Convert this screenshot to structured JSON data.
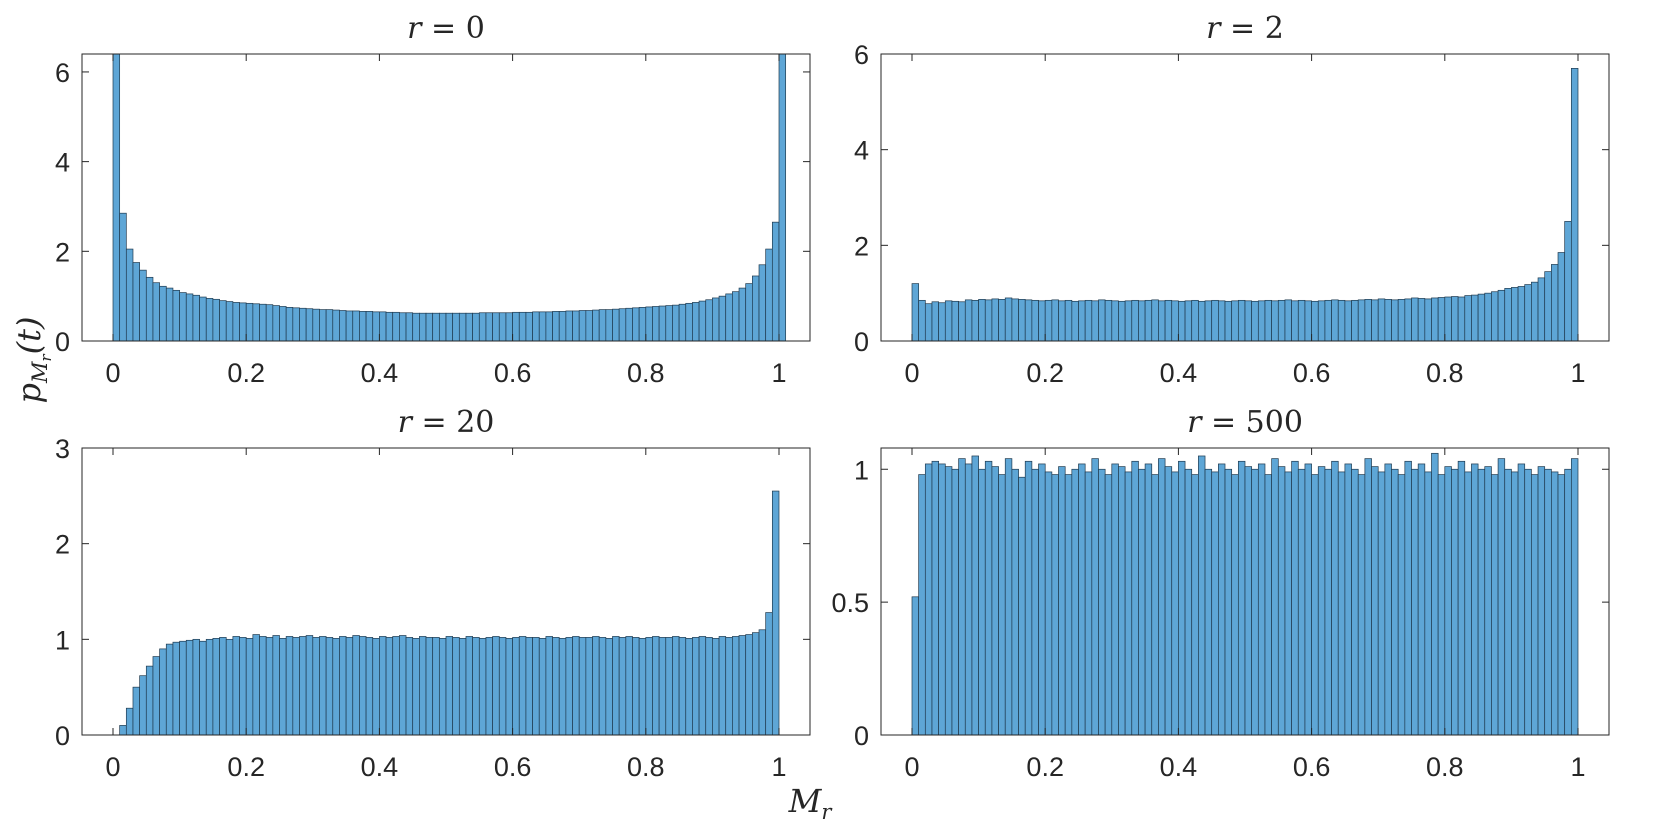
{
  "figure": {
    "xlabel_main": "M",
    "xlabel_sub": "r",
    "ylabel_main": "p",
    "ylabel_sub": "M",
    "ylabel_subsub": "r",
    "ylabel_arg": "(t)"
  },
  "colors": {
    "bar_fill": "#5ea6d6",
    "bar_edge": "#1f3a4f",
    "axes": "#262626"
  },
  "chart_data": [
    {
      "type": "bar",
      "title": "r = 0",
      "title_var": "r",
      "title_value": "0",
      "xlim": [
        0,
        1
      ],
      "ylim": [
        0,
        6.4
      ],
      "xticks": [
        0,
        0.2,
        0.4,
        0.6,
        0.8,
        1
      ],
      "xtick_labels": [
        "0",
        "0.2",
        "0.4",
        "0.6",
        "0.8",
        "1"
      ],
      "yticks": [
        0,
        2,
        4,
        6
      ],
      "ytick_labels": [
        "0",
        "2",
        "4",
        "6"
      ],
      "bin_width": 0.01,
      "values": [
        6.4,
        2.85,
        2.05,
        1.75,
        1.58,
        1.42,
        1.3,
        1.22,
        1.18,
        1.13,
        1.08,
        1.05,
        1.02,
        0.98,
        0.95,
        0.93,
        0.9,
        0.88,
        0.86,
        0.85,
        0.84,
        0.83,
        0.82,
        0.81,
        0.79,
        0.77,
        0.75,
        0.74,
        0.73,
        0.72,
        0.71,
        0.7,
        0.7,
        0.69,
        0.68,
        0.67,
        0.67,
        0.66,
        0.66,
        0.65,
        0.65,
        0.64,
        0.64,
        0.63,
        0.63,
        0.62,
        0.62,
        0.62,
        0.62,
        0.62,
        0.62,
        0.62,
        0.62,
        0.62,
        0.62,
        0.63,
        0.63,
        0.63,
        0.63,
        0.63,
        0.64,
        0.64,
        0.64,
        0.65,
        0.65,
        0.65,
        0.66,
        0.66,
        0.67,
        0.67,
        0.68,
        0.68,
        0.69,
        0.7,
        0.7,
        0.71,
        0.72,
        0.73,
        0.74,
        0.75,
        0.76,
        0.77,
        0.78,
        0.79,
        0.8,
        0.82,
        0.84,
        0.86,
        0.89,
        0.92,
        0.96,
        1.0,
        1.05,
        1.1,
        1.18,
        1.28,
        1.45,
        1.7,
        2.05,
        2.65,
        6.4
      ]
    },
    {
      "type": "bar",
      "title": "r = 2",
      "title_var": "r",
      "title_value": "2",
      "xlim": [
        0,
        1
      ],
      "ylim": [
        0,
        6
      ],
      "xticks": [
        0,
        0.2,
        0.4,
        0.6,
        0.8,
        1
      ],
      "xtick_labels": [
        "0",
        "0.2",
        "0.4",
        "0.6",
        "0.8",
        "1"
      ],
      "yticks": [
        0,
        2,
        4,
        6
      ],
      "ytick_labels": [
        "0",
        "2",
        "4",
        "6"
      ],
      "bin_width": 0.01,
      "values": [
        1.2,
        0.85,
        0.78,
        0.82,
        0.8,
        0.84,
        0.83,
        0.82,
        0.86,
        0.85,
        0.87,
        0.86,
        0.88,
        0.87,
        0.9,
        0.88,
        0.87,
        0.86,
        0.85,
        0.84,
        0.85,
        0.86,
        0.84,
        0.85,
        0.83,
        0.84,
        0.85,
        0.84,
        0.86,
        0.85,
        0.84,
        0.83,
        0.84,
        0.85,
        0.84,
        0.85,
        0.86,
        0.84,
        0.85,
        0.84,
        0.83,
        0.84,
        0.85,
        0.83,
        0.84,
        0.85,
        0.84,
        0.83,
        0.84,
        0.85,
        0.84,
        0.83,
        0.84,
        0.85,
        0.84,
        0.85,
        0.86,
        0.84,
        0.85,
        0.84,
        0.83,
        0.84,
        0.85,
        0.86,
        0.85,
        0.84,
        0.85,
        0.86,
        0.87,
        0.86,
        0.88,
        0.87,
        0.86,
        0.87,
        0.88,
        0.9,
        0.89,
        0.88,
        0.9,
        0.91,
        0.92,
        0.93,
        0.92,
        0.95,
        0.96,
        0.98,
        1.0,
        1.03,
        1.06,
        1.1,
        1.12,
        1.14,
        1.18,
        1.23,
        1.32,
        1.45,
        1.6,
        1.85,
        2.5,
        5.7
      ]
    },
    {
      "type": "bar",
      "title": "r = 20",
      "title_var": "r",
      "title_value": "20",
      "xlim": [
        0,
        1
      ],
      "ylim": [
        0,
        3
      ],
      "xticks": [
        0,
        0.2,
        0.4,
        0.6,
        0.8,
        1
      ],
      "xtick_labels": [
        "0",
        "0.2",
        "0.4",
        "0.6",
        "0.8",
        "1"
      ],
      "yticks": [
        0,
        1,
        2,
        3
      ],
      "ytick_labels": [
        "0",
        "1",
        "2",
        "3"
      ],
      "bin_width": 0.01,
      "values": [
        0.0,
        0.1,
        0.28,
        0.5,
        0.62,
        0.72,
        0.82,
        0.9,
        0.95,
        0.97,
        0.98,
        0.99,
        1.0,
        0.98,
        1.0,
        1.01,
        1.02,
        1.0,
        1.03,
        1.02,
        1.01,
        1.05,
        1.03,
        1.02,
        1.04,
        1.01,
        1.03,
        1.02,
        1.03,
        1.04,
        1.02,
        1.03,
        1.02,
        1.01,
        1.03,
        1.02,
        1.04,
        1.03,
        1.02,
        1.01,
        1.03,
        1.02,
        1.03,
        1.04,
        1.02,
        1.01,
        1.03,
        1.02,
        1.02,
        1.01,
        1.03,
        1.02,
        1.01,
        1.03,
        1.02,
        1.01,
        1.02,
        1.03,
        1.02,
        1.01,
        1.02,
        1.03,
        1.02,
        1.02,
        1.01,
        1.03,
        1.02,
        1.01,
        1.02,
        1.03,
        1.02,
        1.02,
        1.03,
        1.02,
        1.01,
        1.03,
        1.02,
        1.03,
        1.02,
        1.01,
        1.02,
        1.03,
        1.02,
        1.02,
        1.03,
        1.02,
        1.01,
        1.02,
        1.03,
        1.02,
        1.01,
        1.03,
        1.02,
        1.03,
        1.04,
        1.05,
        1.07,
        1.1,
        1.28,
        2.55
      ]
    },
    {
      "type": "bar",
      "title": "r = 500",
      "title_var": "r",
      "title_value": "500",
      "xlim": [
        0,
        1
      ],
      "ylim": [
        0,
        1.08
      ],
      "xticks": [
        0,
        0.2,
        0.4,
        0.6,
        0.8,
        1
      ],
      "xtick_labels": [
        "0",
        "0.2",
        "0.4",
        "0.6",
        "0.8",
        "1"
      ],
      "yticks": [
        0,
        0.5,
        1
      ],
      "ytick_labels": [
        "0",
        "0.5",
        "1"
      ],
      "bin_width": 0.01,
      "values": [
        0.52,
        0.98,
        1.02,
        1.03,
        1.02,
        1.01,
        1.0,
        1.04,
        1.02,
        1.05,
        1.0,
        1.03,
        1.01,
        0.98,
        1.04,
        1.0,
        0.97,
        1.03,
        1.0,
        1.02,
        0.99,
        0.98,
        1.01,
        0.98,
        1.0,
        1.02,
        0.99,
        1.04,
        1.0,
        0.98,
        1.02,
        1.01,
        0.99,
        1.03,
        1.0,
        1.02,
        0.98,
        1.04,
        1.01,
        0.99,
        1.03,
        1.0,
        0.98,
        1.05,
        1.0,
        0.99,
        1.02,
        1.0,
        0.98,
        1.03,
        1.01,
        1.0,
        1.02,
        0.98,
        1.04,
        1.01,
        0.99,
        1.03,
        1.0,
        1.02,
        0.98,
        1.01,
        1.0,
        1.03,
        0.99,
        1.02,
        1.0,
        0.98,
        1.04,
        1.01,
        0.99,
        1.02,
        1.0,
        0.98,
        1.03,
        1.0,
        1.02,
        0.99,
        1.06,
        0.98,
        1.01,
        1.0,
        1.03,
        0.99,
        1.02,
        1.0,
        1.01,
        0.98,
        1.04,
        1.0,
        0.99,
        1.02,
        1.0,
        0.98,
        1.01,
        1.0,
        0.99,
        0.98,
        1.0,
        1.04
      ]
    }
  ]
}
